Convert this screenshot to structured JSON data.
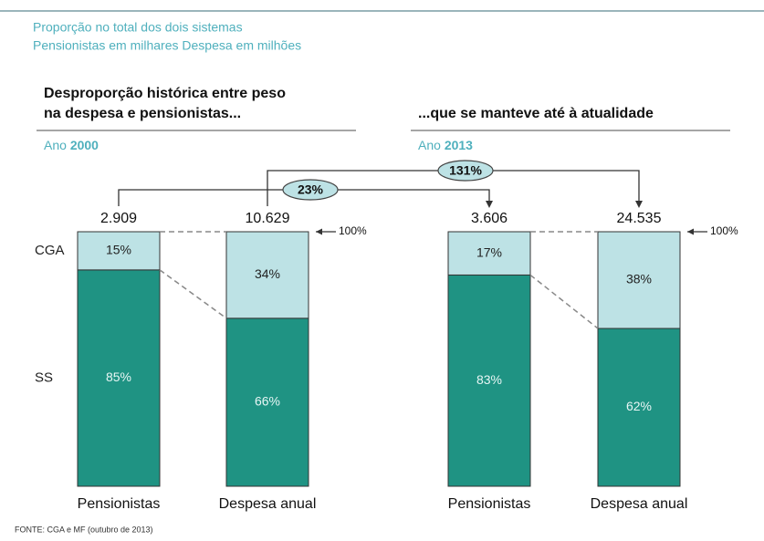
{
  "chart_data": {
    "type": "bar",
    "header": [
      "Proporção no total dos dois sistemas",
      "Pensionistas em milhares  Despesa em milhões"
    ],
    "panels": [
      {
        "title": [
          "Desproporção histórica entre peso",
          "na despesa e pensionistas..."
        ],
        "year_prefix": "Ano",
        "year": "2000"
      },
      {
        "title": [
          "...que se manteve até à atualidade"
        ],
        "year_prefix": "Ano",
        "year": "2013"
      }
    ],
    "categories": [
      "Pensionistas",
      "Despesa anual",
      "Pensionistas",
      "Despesa anual"
    ],
    "series": [
      {
        "name": "SS",
        "color": "#1f9383",
        "values": [
          85,
          66,
          83,
          62
        ],
        "value_labels": [
          "85%",
          "66%",
          "83%",
          "62%"
        ]
      },
      {
        "name": "CGA",
        "color": "#bde2e5",
        "values": [
          15,
          34,
          17,
          38
        ],
        "value_labels": [
          "15%",
          "34%",
          "17%",
          "38%"
        ]
      }
    ],
    "totals": {
      "values": [
        2909,
        10629,
        3606,
        24535
      ],
      "value_labels": [
        "2.909",
        "10.629",
        "3.606",
        "24.535"
      ]
    },
    "growth": {
      "values": [
        23,
        131
      ],
      "value_labels": [
        "23%",
        "131%"
      ]
    },
    "ylim": [
      0,
      100
    ],
    "yticks": [
      {
        "value": 100,
        "label": "100%"
      }
    ],
    "source": "FONTE: CGA e MF (outubro de 2013)"
  }
}
